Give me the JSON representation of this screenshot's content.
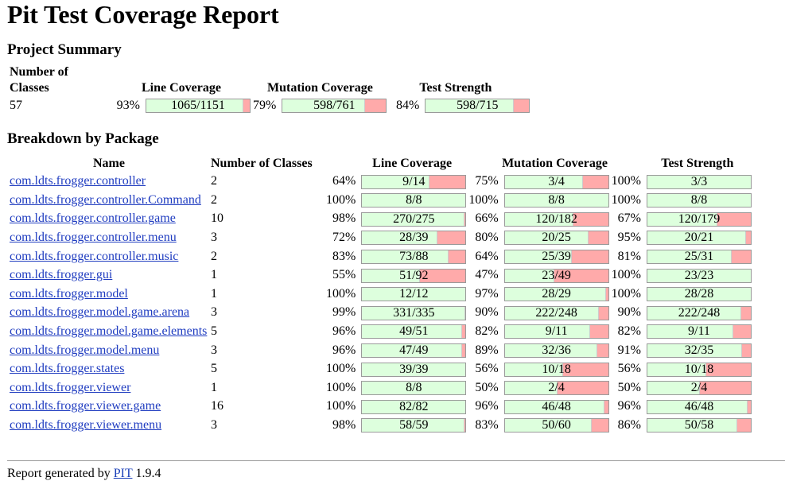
{
  "title": "Pit Test Coverage Report",
  "summary": {
    "heading": "Project Summary",
    "headers": {
      "classes": "Number of Classes",
      "line": "Line Coverage",
      "mutation": "Mutation Coverage",
      "strength": "Test Strength"
    },
    "classes": "57",
    "line": {
      "pct": "93%",
      "label": "1065/1151",
      "frac": 0.93
    },
    "mutation": {
      "pct": "79%",
      "label": "598/761",
      "frac": 0.79
    },
    "strength": {
      "pct": "84%",
      "label": "598/715",
      "frac": 0.84
    }
  },
  "breakdown": {
    "heading": "Breakdown by Package",
    "headers": {
      "name": "Name",
      "classes": "Number of Classes",
      "line": "Line Coverage",
      "mutation": "Mutation Coverage",
      "strength": "Test Strength"
    },
    "rows": [
      {
        "name": "com.ldts.frogger.controller",
        "classes": "2",
        "line": {
          "pct": "64%",
          "label": "9/14",
          "frac": 0.64
        },
        "mutation": {
          "pct": "75%",
          "label": "3/4",
          "frac": 0.75
        },
        "strength": {
          "pct": "100%",
          "label": "3/3",
          "frac": 1.0
        }
      },
      {
        "name": "com.ldts.frogger.controller.Command",
        "classes": "2",
        "line": {
          "pct": "100%",
          "label": "8/8",
          "frac": 1.0
        },
        "mutation": {
          "pct": "100%",
          "label": "8/8",
          "frac": 1.0
        },
        "strength": {
          "pct": "100%",
          "label": "8/8",
          "frac": 1.0
        }
      },
      {
        "name": "com.ldts.frogger.controller.game",
        "classes": "10",
        "line": {
          "pct": "98%",
          "label": "270/275",
          "frac": 0.98
        },
        "mutation": {
          "pct": "66%",
          "label": "120/182",
          "frac": 0.66
        },
        "strength": {
          "pct": "67%",
          "label": "120/179",
          "frac": 0.67
        }
      },
      {
        "name": "com.ldts.frogger.controller.menu",
        "classes": "3",
        "line": {
          "pct": "72%",
          "label": "28/39",
          "frac": 0.72
        },
        "mutation": {
          "pct": "80%",
          "label": "20/25",
          "frac": 0.8
        },
        "strength": {
          "pct": "95%",
          "label": "20/21",
          "frac": 0.95
        }
      },
      {
        "name": "com.ldts.frogger.controller.music",
        "classes": "2",
        "line": {
          "pct": "83%",
          "label": "73/88",
          "frac": 0.83
        },
        "mutation": {
          "pct": "64%",
          "label": "25/39",
          "frac": 0.64
        },
        "strength": {
          "pct": "81%",
          "label": "25/31",
          "frac": 0.81
        }
      },
      {
        "name": "com.ldts.frogger.gui",
        "classes": "1",
        "line": {
          "pct": "55%",
          "label": "51/92",
          "frac": 0.55
        },
        "mutation": {
          "pct": "47%",
          "label": "23/49",
          "frac": 0.47
        },
        "strength": {
          "pct": "100%",
          "label": "23/23",
          "frac": 1.0
        }
      },
      {
        "name": "com.ldts.frogger.model",
        "classes": "1",
        "line": {
          "pct": "100%",
          "label": "12/12",
          "frac": 1.0
        },
        "mutation": {
          "pct": "97%",
          "label": "28/29",
          "frac": 0.97
        },
        "strength": {
          "pct": "100%",
          "label": "28/28",
          "frac": 1.0
        }
      },
      {
        "name": "com.ldts.frogger.model.game.arena",
        "classes": "3",
        "line": {
          "pct": "99%",
          "label": "331/335",
          "frac": 0.99
        },
        "mutation": {
          "pct": "90%",
          "label": "222/248",
          "frac": 0.9
        },
        "strength": {
          "pct": "90%",
          "label": "222/248",
          "frac": 0.9
        }
      },
      {
        "name": "com.ldts.frogger.model.game.elements",
        "classes": "5",
        "line": {
          "pct": "96%",
          "label": "49/51",
          "frac": 0.96
        },
        "mutation": {
          "pct": "82%",
          "label": "9/11",
          "frac": 0.82
        },
        "strength": {
          "pct": "82%",
          "label": "9/11",
          "frac": 0.82
        }
      },
      {
        "name": "com.ldts.frogger.model.menu",
        "classes": "3",
        "line": {
          "pct": "96%",
          "label": "47/49",
          "frac": 0.96
        },
        "mutation": {
          "pct": "89%",
          "label": "32/36",
          "frac": 0.89
        },
        "strength": {
          "pct": "91%",
          "label": "32/35",
          "frac": 0.91
        }
      },
      {
        "name": "com.ldts.frogger.states",
        "classes": "5",
        "line": {
          "pct": "100%",
          "label": "39/39",
          "frac": 1.0
        },
        "mutation": {
          "pct": "56%",
          "label": "10/18",
          "frac": 0.56
        },
        "strength": {
          "pct": "56%",
          "label": "10/18",
          "frac": 0.56
        }
      },
      {
        "name": "com.ldts.frogger.viewer",
        "classes": "1",
        "line": {
          "pct": "100%",
          "label": "8/8",
          "frac": 1.0
        },
        "mutation": {
          "pct": "50%",
          "label": "2/4",
          "frac": 0.5
        },
        "strength": {
          "pct": "50%",
          "label": "2/4",
          "frac": 0.5
        }
      },
      {
        "name": "com.ldts.frogger.viewer.game",
        "classes": "16",
        "line": {
          "pct": "100%",
          "label": "82/82",
          "frac": 1.0
        },
        "mutation": {
          "pct": "96%",
          "label": "46/48",
          "frac": 0.96
        },
        "strength": {
          "pct": "96%",
          "label": "46/48",
          "frac": 0.96
        }
      },
      {
        "name": "com.ldts.frogger.viewer.menu",
        "classes": "3",
        "line": {
          "pct": "98%",
          "label": "58/59",
          "frac": 0.98
        },
        "mutation": {
          "pct": "83%",
          "label": "50/60",
          "frac": 0.83
        },
        "strength": {
          "pct": "86%",
          "label": "50/58",
          "frac": 0.86
        }
      }
    ]
  },
  "footer": {
    "prefix": "Report generated by ",
    "link": "PIT",
    "version": " 1.9.4"
  },
  "colors": {
    "covered": "#ddffdd",
    "uncovered": "#ffaaaa",
    "link": "#1f3cc0"
  }
}
